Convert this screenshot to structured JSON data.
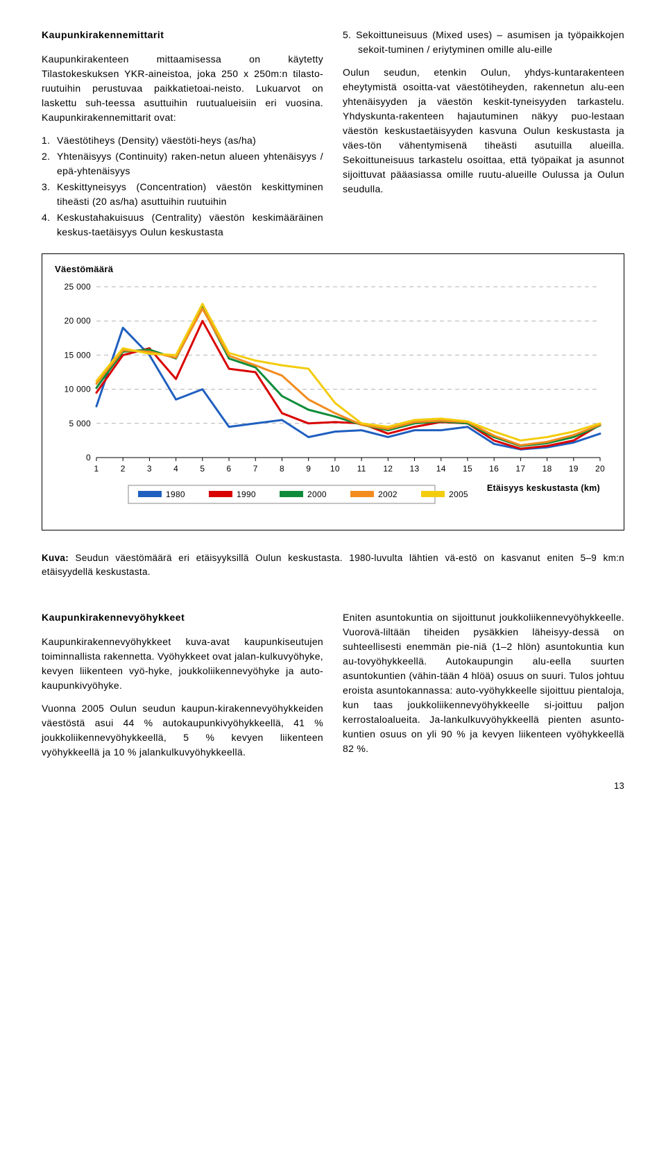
{
  "upper": {
    "left": {
      "title": "Kaupunkirakennemittarit",
      "p1": "Kaupunkirakenteen mittaamisessa on käytetty Tilastokeskuksen YKR-aineistoa, joka 250 x 250m:n tilasto-ruutuihin perustuvaa paikkatietoai-neisto. Lukuarvot on laskettu suh-teessa asuttuihin ruutualueisiin eri vuosina. Kaupunkirakennemittarit ovat:",
      "list": [
        "Väestötiheys (Density) väestöti-heys (as/ha)",
        "Yhtenäisyys (Continuity) raken-netun alueen yhtenäisyys / epä-yhtenäisyys",
        "Keskittyneisyys (Concentration) väestön keskittyminen tiheästi (20 as/ha) asuttuihin ruutuihin",
        "Keskustahakuisuus (Centrality) väestön keskimääräinen keskus-taetäisyys Oulun keskustasta"
      ]
    },
    "right": {
      "p1": "5. Sekoittuneisuus (Mixed uses) – asumisen ja työpaikkojen sekoit-tuminen / eriytyminen omille alu-eille",
      "p2": "Oulun seudun, etenkin Oulun, yhdys-kuntarakenteen eheytymistä osoitta-vat väestötiheyden, rakennetun alu-een yhtenäisyyden ja väestön keskit-tyneisyyden tarkastelu. Yhdyskunta-rakenteen hajautuminen näkyy puo-lestaan väestön keskustaetäisyyden kasvuna Oulun keskustasta ja väes-tön vähentymisenä tiheästi asutuilla alueilla. Sekoittuneisuus tarkastelu osoittaa, että työpaikat ja asunnot sijoittuvat pääasiassa omille ruutu-alueille Oulussa ja Oulun seudulla."
    }
  },
  "chart": {
    "title": "Väestömäärä",
    "background_color": "#ffffff",
    "grid_color": "#b2b2b2",
    "axis_color": "#000000",
    "ylim": [
      0,
      25000
    ],
    "ytick_step": 5000,
    "yticks": [
      "0",
      "5 000",
      "10 000",
      "15 000",
      "20 000",
      "25 000"
    ],
    "xticks": [
      "1",
      "2",
      "3",
      "4",
      "5",
      "6",
      "7",
      "8",
      "9",
      "10",
      "11",
      "12",
      "13",
      "14",
      "15",
      "16",
      "17",
      "18",
      "19",
      "20"
    ],
    "xlabel": "Etäisyys keskustasta (km)",
    "line_width": 3,
    "series": [
      {
        "name": "1980",
        "color": "#1f5fbf",
        "values": [
          7500,
          19000,
          15000,
          8500,
          10000,
          4500,
          5000,
          5500,
          3000,
          3800,
          4000,
          3000,
          4000,
          4000,
          4500,
          2000,
          1200,
          1500,
          2200,
          3500
        ]
      },
      {
        "name": "1990",
        "color": "#d90000",
        "values": [
          9500,
          15000,
          16000,
          11500,
          20000,
          13000,
          12500,
          6500,
          5000,
          5200,
          5000,
          3500,
          4500,
          5200,
          5000,
          2500,
          1300,
          1700,
          2500,
          4800
        ]
      },
      {
        "name": "2000",
        "color": "#0f8c3a",
        "values": [
          10200,
          15500,
          15800,
          14500,
          22000,
          14500,
          13200,
          9000,
          7000,
          6000,
          4800,
          4000,
          5000,
          5300,
          5000,
          3000,
          1700,
          2100,
          3000,
          4700
        ]
      },
      {
        "name": "2002",
        "color": "#f28c1e",
        "values": [
          10800,
          15700,
          15500,
          14600,
          21800,
          14900,
          13500,
          12000,
          8500,
          6500,
          4800,
          4200,
          5200,
          5400,
          5200,
          3200,
          1800,
          2300,
          3300,
          4800
        ]
      },
      {
        "name": "2005",
        "color": "#f3cc0d",
        "values": [
          11200,
          16000,
          15200,
          15000,
          22500,
          15300,
          14200,
          13500,
          13000,
          8000,
          5000,
          4500,
          5500,
          5700,
          5300,
          3800,
          2500,
          3000,
          3800,
          5000
        ]
      }
    ]
  },
  "caption": {
    "lead": "Kuva:",
    "text": " Seudun väestömäärä eri etäisyyksillä Oulun keskustasta. 1980-luvulta lähtien vä-estö on kasvanut eniten 5–9 km:n etäisyydellä keskustasta."
  },
  "lower": {
    "left": {
      "title": "Kaupunkirakennevyöhykkeet",
      "p1": "Kaupunkirakennevyöhykkeet kuva-avat kaupunkiseutujen toiminnallista rakennetta. Vyöhykkeet ovat jalan-kulkuvyöhyke, kevyen liikenteen vyö-hyke, joukkoliikennevyöhyke ja auto-kaupunkivyöhyke.",
      "p2": "Vuonna 2005 Oulun seudun kaupun-kirakennevyöhykkeiden väestöstä asui 44 % autokaupunkivyöhykkeellä, 41 % joukkoliikennevyöhykkeellä, 5 % kevyen liikenteen vyöhykkeellä ja 10 % jalankulkuvyöhykkeellä."
    },
    "right": {
      "p1": "Eniten asuntokuntia on sijoittunut joukkoliikennevyöhykkeelle. Vuorovä-liltään tiheiden pysäkkien läheisyy-dessä on suhteellisesti enemmän pie-niä (1–2 hlön) asuntokuntia kun au-tovyöhykkeellä. Autokaupungin alu-eella suurten asuntokuntien (vähin-tään 4 hlöä) osuus on suuri. Tulos johtuu eroista asuntokannassa: auto-vyöhykkeelle sijoittuu pientaloja, kun taas joukkoliikennevyöhykkeelle si-joittuu paljon kerrostaloalueita. Ja-lankulkuvyöhykkeellä pienten asunto-kuntien osuus on yli 90 % ja kevyen liikenteen vyöhykkeellä 82 %."
    }
  },
  "page_number": "13"
}
